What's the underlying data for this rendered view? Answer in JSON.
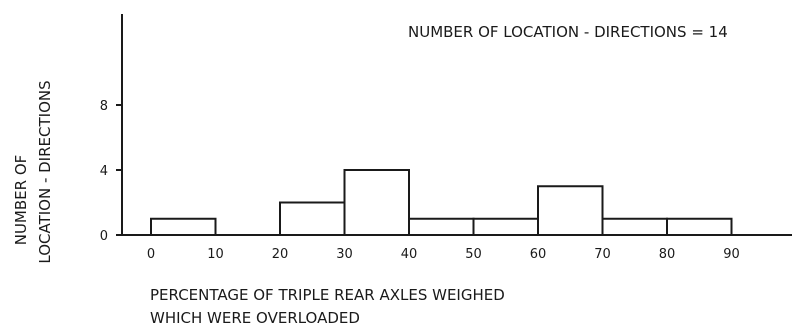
{
  "chart_data": {
    "type": "bar",
    "annotation": "NUMBER OF LOCATION - DIRECTIONS = 14",
    "xlabel_lines": [
      "PERCENTAGE OF TRIPLE REAR AXLES WEIGHED",
      "WHICH WERE OVERLOADED"
    ],
    "ylabel_lines": [
      "NUMBER OF",
      "LOCATION - DIRECTIONS"
    ],
    "x_ticks": [
      "0",
      "10",
      "20",
      "30",
      "40",
      "50",
      "60",
      "70",
      "80",
      "90"
    ],
    "y_ticks": [
      "0",
      "4",
      "8"
    ],
    "xlim": [
      -5,
      100
    ],
    "ylim": [
      0,
      8
    ],
    "bins": [
      {
        "from": 0,
        "to": 10,
        "value": 1
      },
      {
        "from": 10,
        "to": 20,
        "value": 0
      },
      {
        "from": 20,
        "to": 30,
        "value": 2
      },
      {
        "from": 30,
        "to": 40,
        "value": 4
      },
      {
        "from": 40,
        "to": 50,
        "value": 1
      },
      {
        "from": 50,
        "to": 60,
        "value": 1
      },
      {
        "from": 60,
        "to": 70,
        "value": 3
      },
      {
        "from": 70,
        "to": 80,
        "value": 1
      },
      {
        "from": 80,
        "to": 90,
        "value": 1
      }
    ],
    "grid": false,
    "colors": {
      "ink": "#1a1a1a",
      "background": "#ffffff"
    }
  }
}
